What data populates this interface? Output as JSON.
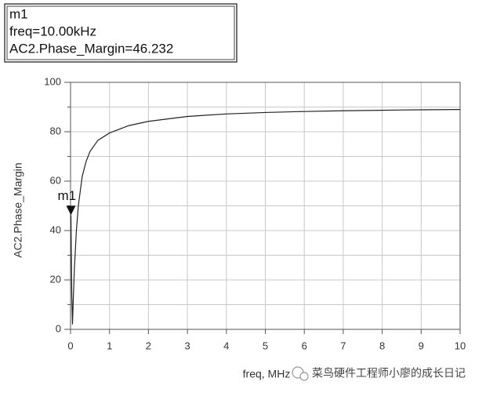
{
  "chart_data": {
    "type": "line",
    "y_label": "AC2.Phase_Margin",
    "x_label": "freq, MHz",
    "x": [
      0.01,
      0.03,
      0.05,
      0.07,
      0.1,
      0.15,
      0.2,
      0.3,
      0.4,
      0.5,
      0.7,
      1,
      1.5,
      2,
      3,
      4,
      5,
      6,
      7,
      8,
      9,
      10
    ],
    "series": [
      {
        "color": "#222222",
        "values": [
          46.232,
          15,
          2,
          12,
          25,
          40,
          50,
          62,
          68,
          72,
          76.5,
          79.5,
          82.5,
          84.2,
          86.2,
          87.2,
          87.8,
          88.2,
          88.5,
          88.7,
          88.9,
          89
        ]
      }
    ],
    "xlim": [
      0,
      10
    ],
    "xticks": [
      0,
      1,
      2,
      3,
      4,
      5,
      6,
      7,
      8,
      9,
      10
    ],
    "ylim": [
      0,
      100
    ],
    "yticks": [
      0,
      20,
      40,
      60,
      80,
      100
    ],
    "y_minor_ticks": [
      10,
      30,
      50,
      70,
      90
    ],
    "grid": true,
    "marker": {
      "name": "m1",
      "x": 0.01,
      "y": 46.232,
      "lines": [
        "m1",
        "freq=10.00kHz",
        "AC2.Phase_Margin=46.232"
      ]
    },
    "watermark": "菜鸟硬件工程师小廖的成长日记"
  }
}
